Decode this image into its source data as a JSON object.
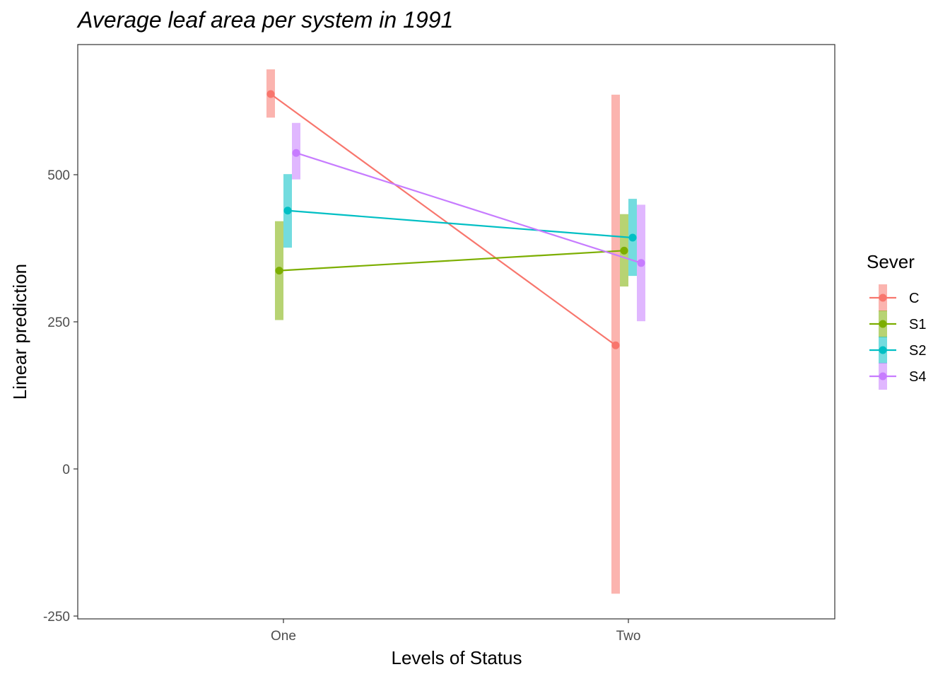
{
  "chart_data": {
    "type": "line",
    "title": "Average leaf area per system in 1991",
    "xlabel": "Levels of Status",
    "ylabel": "Linear prediction",
    "categories": [
      "One",
      "Two"
    ],
    "y_ticks": [
      -250,
      0,
      250,
      500
    ],
    "ylim": [
      -255,
      725
    ],
    "grid": false,
    "legend": {
      "title": "Sever",
      "placement": "right"
    },
    "series": [
      {
        "name": "C",
        "color": "#F8766D",
        "values": [
          637,
          210
        ],
        "lower": [
          597,
          -212
        ],
        "upper": [
          679,
          636
        ]
      },
      {
        "name": "S1",
        "color": "#7CAE00",
        "values": [
          337,
          371
        ],
        "lower": [
          253,
          310
        ],
        "upper": [
          421,
          433
        ]
      },
      {
        "name": "S2",
        "color": "#00BFC4",
        "values": [
          439,
          393
        ],
        "lower": [
          376,
          328
        ],
        "upper": [
          501,
          459
        ]
      },
      {
        "name": "S4",
        "color": "#C77CFF",
        "values": [
          537,
          350
        ],
        "lower": [
          492,
          251
        ],
        "upper": [
          588,
          449
        ]
      }
    ]
  }
}
